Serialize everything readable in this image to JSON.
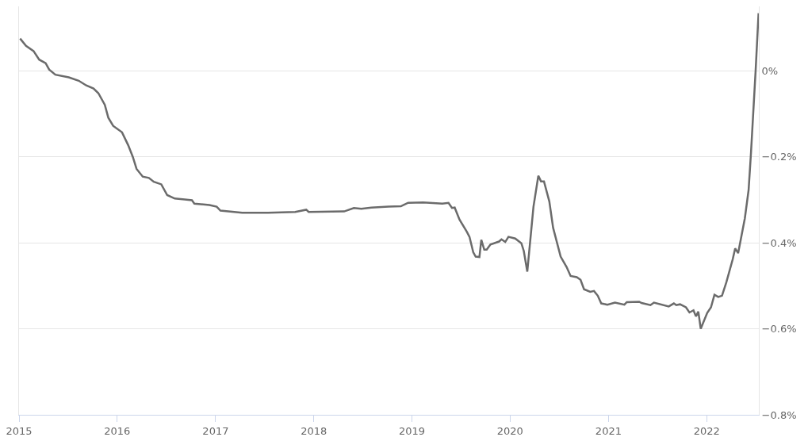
{
  "chart_data": {
    "type": "line",
    "x": [
      "2015-01-05",
      "2015-01-27",
      "2015-02-24",
      "2015-03-17",
      "2015-04-10",
      "2015-04-23",
      "2015-05-16",
      "2015-07-05",
      "2015-08-11",
      "2015-09-08",
      "2015-10-05",
      "2015-10-23",
      "2015-11-16",
      "2015-11-29",
      "2015-12-17",
      "2016-01-19",
      "2016-02-11",
      "2016-02-28",
      "2016-03-13",
      "2016-04-05",
      "2016-04-28",
      "2016-05-16",
      "2016-06-13",
      "2016-07-05",
      "2016-08-02",
      "2016-09-08",
      "2016-10-05",
      "2016-10-14",
      "2016-12-09",
      "2017-01-05",
      "2017-01-19",
      "2017-04-10",
      "2017-07-15",
      "2017-10-24",
      "2017-12-04",
      "2017-12-13",
      "2018-04-24",
      "2018-05-30",
      "2018-06-27",
      "2018-08-03",
      "2018-10-06",
      "2018-11-21",
      "2018-12-18",
      "2019-02-12",
      "2019-04-24",
      "2019-05-17",
      "2019-05-30",
      "2019-06-09",
      "2019-06-27",
      "2019-07-24",
      "2019-08-03",
      "2019-08-17",
      "2019-08-26",
      "2019-09-09",
      "2019-09-16",
      "2019-09-27",
      "2019-10-06",
      "2019-10-20",
      "2019-11-21",
      "2019-11-30",
      "2019-12-14",
      "2019-12-26",
      "2020-01-20",
      "2020-02-12",
      "2020-02-21",
      "2020-03-05",
      "2020-03-28",
      "2020-04-15",
      "2020-04-25",
      "2020-05-06",
      "2020-05-26",
      "2020-06-09",
      "2020-07-07",
      "2020-07-29",
      "2020-08-13",
      "2020-09-05",
      "2020-09-19",
      "2020-10-02",
      "2020-10-25",
      "2020-11-08",
      "2020-11-22",
      "2020-12-05",
      "2020-12-28",
      "2021-01-25",
      "2021-03-01",
      "2021-03-10",
      "2021-04-25",
      "2021-05-04",
      "2021-06-06",
      "2021-06-19",
      "2021-08-13",
      "2021-09-01",
      "2021-09-10",
      "2021-09-24",
      "2021-10-16",
      "2021-10-29",
      "2021-11-13",
      "2021-11-22",
      "2021-12-01",
      "2021-12-10",
      "2022-01-03",
      "2022-01-17",
      "2022-01-30",
      "2022-02-13",
      "2022-02-27",
      "2022-03-15",
      "2022-04-08",
      "2022-04-17",
      "2022-04-28",
      "2022-05-23",
      "2022-06-06",
      "2022-06-15",
      "2022-07-02",
      "2022-07-13"
    ],
    "series": [
      {
        "color": "#6b6b6b",
        "values": [
          0.075,
          0.058,
          0.046,
          0.026,
          0.018,
          0.003,
          -0.009,
          -0.015,
          -0.023,
          -0.034,
          -0.041,
          -0.052,
          -0.079,
          -0.109,
          -0.128,
          -0.143,
          -0.173,
          -0.2,
          -0.228,
          -0.246,
          -0.249,
          -0.258,
          -0.264,
          -0.289,
          -0.297,
          -0.299,
          -0.301,
          -0.309,
          -0.312,
          -0.316,
          -0.325,
          -0.33,
          -0.33,
          -0.328,
          -0.323,
          -0.328,
          -0.327,
          -0.319,
          -0.321,
          -0.318,
          -0.316,
          -0.315,
          -0.307,
          -0.306,
          -0.309,
          -0.307,
          -0.319,
          -0.318,
          -0.346,
          -0.374,
          -0.386,
          -0.422,
          -0.432,
          -0.433,
          -0.393,
          -0.416,
          -0.416,
          -0.404,
          -0.397,
          -0.392,
          -0.398,
          -0.386,
          -0.39,
          -0.401,
          -0.419,
          -0.467,
          -0.316,
          -0.244,
          -0.257,
          -0.257,
          -0.304,
          -0.365,
          -0.432,
          -0.456,
          -0.477,
          -0.48,
          -0.486,
          -0.508,
          -0.514,
          -0.512,
          -0.523,
          -0.541,
          -0.544,
          -0.539,
          -0.544,
          -0.538,
          -0.537,
          -0.54,
          -0.545,
          -0.539,
          -0.548,
          -0.541,
          -0.545,
          -0.543,
          -0.55,
          -0.562,
          -0.557,
          -0.571,
          -0.56,
          -0.6,
          -0.563,
          -0.55,
          -0.521,
          -0.526,
          -0.523,
          -0.492,
          -0.438,
          -0.413,
          -0.424,
          -0.343,
          -0.277,
          -0.189,
          0,
          0.134
        ]
      }
    ],
    "xlim": [
      "2015-01-01",
      "2022-07-14"
    ],
    "xticks": [
      {
        "value": "2015-01-01",
        "label": "2015"
      },
      {
        "value": "2016-01-01",
        "label": "2016"
      },
      {
        "value": "2017-01-01",
        "label": "2017"
      },
      {
        "value": "2018-01-01",
        "label": "2018"
      },
      {
        "value": "2019-01-01",
        "label": "2019"
      },
      {
        "value": "2020-01-01",
        "label": "2020"
      },
      {
        "value": "2021-01-01",
        "label": "2021"
      },
      {
        "value": "2022-01-01",
        "label": "2022"
      }
    ],
    "ylim": [
      -0.8,
      0.15
    ],
    "yticks": [
      {
        "value": 0,
        "label": "0%"
      },
      {
        "value": -0.2,
        "label": "−0.2%"
      },
      {
        "value": -0.4,
        "label": "−0.4%"
      },
      {
        "value": -0.6,
        "label": "−0.6%"
      },
      {
        "value": -0.8,
        "label": "−0.8%"
      }
    ],
    "grid": "y",
    "marker": "none",
    "line_style": "solid"
  }
}
